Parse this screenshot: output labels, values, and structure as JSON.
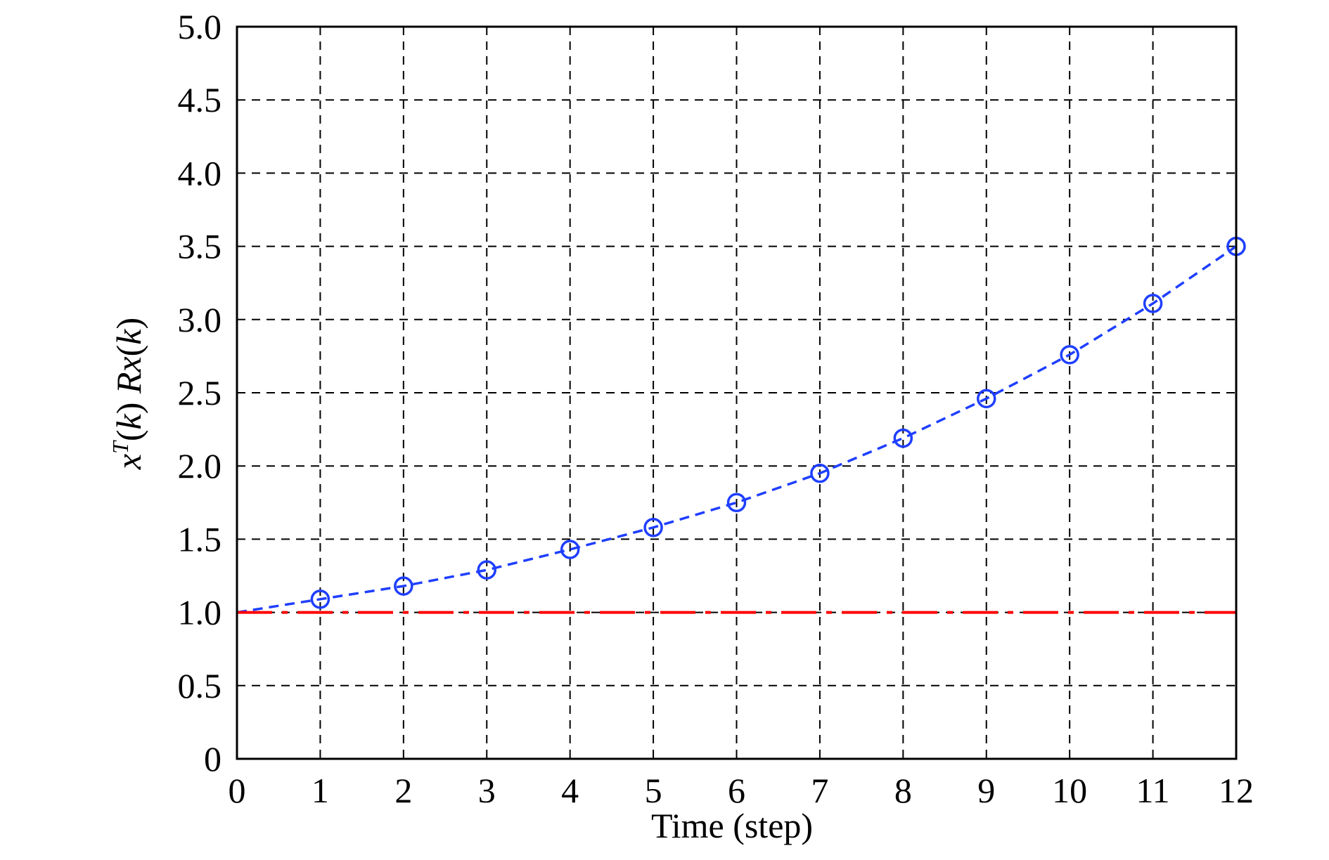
{
  "chart_data": {
    "type": "line",
    "xlabel": "Time (step)",
    "ylabel": {
      "base1": "x",
      "sup": "T",
      "rest1": "(",
      "var1": "k",
      "rest2": ") ",
      "var2": "Rx",
      "rest3": "(",
      "var3": "k",
      "rest4": ")"
    },
    "xlim": [
      0,
      12
    ],
    "ylim": [
      0,
      5.0
    ],
    "x_ticks": [
      0,
      1,
      2,
      3,
      4,
      5,
      6,
      7,
      8,
      9,
      10,
      11,
      12
    ],
    "x_tick_labels": [
      "0",
      "1",
      "2",
      "3",
      "4",
      "5",
      "6",
      "7",
      "8",
      "9",
      "10",
      "11",
      "12"
    ],
    "y_ticks": [
      0,
      0.5,
      1.0,
      1.5,
      2.0,
      2.5,
      3.0,
      3.5,
      4.0,
      4.5,
      5.0
    ],
    "y_tick_labels": [
      "0",
      "0.5",
      "1.0",
      "1.5",
      "2.0",
      "2.5",
      "3.0",
      "3.5",
      "4.0",
      "4.5",
      "5.0"
    ],
    "grid": true,
    "series": [
      {
        "style": "dashed line with circle markers",
        "color": "#1f3fff",
        "x": [
          0,
          1,
          2,
          3,
          4,
          5,
          6,
          7,
          8,
          9,
          10,
          11,
          12
        ],
        "y": [
          1.0,
          1.09,
          1.18,
          1.29,
          1.43,
          1.58,
          1.75,
          1.95,
          2.19,
          2.46,
          2.76,
          3.11,
          3.5
        ],
        "markers_from_index": 1
      },
      {
        "style": "dash-dot line",
        "color": "#ff0000",
        "x": [
          0,
          12
        ],
        "y": [
          1.0,
          1.0
        ]
      }
    ]
  }
}
